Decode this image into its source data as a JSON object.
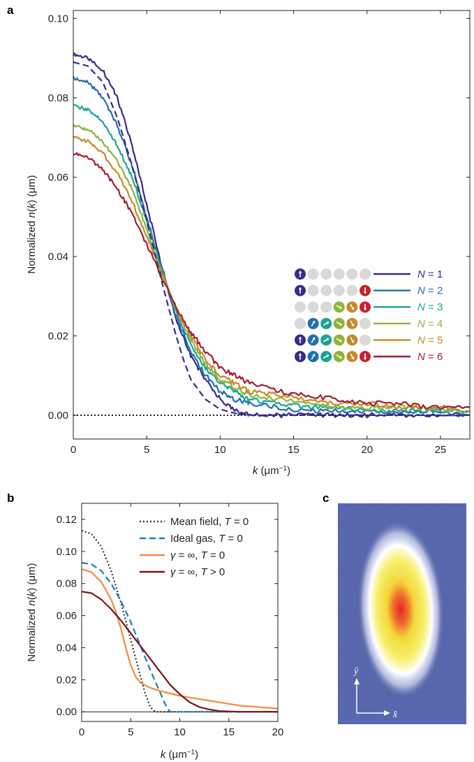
{
  "panels": {
    "a": "a",
    "b": "b",
    "c": "c"
  },
  "chart_data": [
    {
      "panel": "a",
      "type": "line",
      "xlabel": "k (μm⁻¹)",
      "ylabel": "Normalized n(k) (μm)",
      "xlim": [
        0,
        27
      ],
      "ylim": [
        -0.006,
        0.102
      ],
      "xticks": [
        0,
        5,
        10,
        15,
        20,
        25
      ],
      "yticks": [
        0.0,
        0.02,
        0.04,
        0.06,
        0.08,
        0.1
      ],
      "legend_position": "center-right",
      "reference_line": {
        "y": 0.0,
        "style": "dotted",
        "color": "#231f20"
      },
      "series": [
        {
          "name": "N = 1",
          "color": "#3b2a86",
          "x": [
            0,
            1,
            2,
            3,
            4,
            5,
            6,
            7,
            8,
            9,
            10,
            11,
            12,
            14,
            16,
            18,
            20,
            22,
            24,
            27
          ],
          "y": [
            0.091,
            0.09,
            0.087,
            0.08,
            0.068,
            0.053,
            0.038,
            0.024,
            0.015,
            0.009,
            0.004,
            0.001,
            0.0,
            0.0,
            0.0,
            0.0,
            0.0,
            0.0,
            0.0,
            0.0
          ]
        },
        {
          "name": "N = 2",
          "color": "#1f6fb2",
          "x": [
            0,
            1,
            2,
            3,
            4,
            5,
            6,
            7,
            8,
            9,
            10,
            11,
            12,
            14,
            16,
            18,
            20,
            22,
            24,
            27
          ],
          "y": [
            0.085,
            0.084,
            0.08,
            0.073,
            0.063,
            0.05,
            0.037,
            0.025,
            0.016,
            0.01,
            0.006,
            0.004,
            0.003,
            0.002,
            0.001,
            0.001,
            0.001,
            0.001,
            0.001,
            0.0
          ]
        },
        {
          "name": "N = 3",
          "color": "#1aa393",
          "x": [
            0,
            1,
            2,
            3,
            4,
            5,
            6,
            7,
            8,
            9,
            10,
            11,
            12,
            14,
            16,
            18,
            20,
            22,
            24,
            27
          ],
          "y": [
            0.078,
            0.077,
            0.074,
            0.068,
            0.06,
            0.049,
            0.037,
            0.026,
            0.018,
            0.012,
            0.008,
            0.006,
            0.004,
            0.003,
            0.002,
            0.002,
            0.001,
            0.001,
            0.001,
            0.001
          ]
        },
        {
          "name": "N = 4",
          "color": "#8fb43a",
          "x": [
            0,
            1,
            2,
            3,
            4,
            5,
            6,
            7,
            8,
            9,
            10,
            11,
            12,
            14,
            16,
            18,
            20,
            22,
            24,
            27
          ],
          "y": [
            0.073,
            0.072,
            0.069,
            0.064,
            0.057,
            0.047,
            0.036,
            0.027,
            0.019,
            0.013,
            0.009,
            0.007,
            0.005,
            0.004,
            0.003,
            0.002,
            0.002,
            0.002,
            0.002,
            0.001
          ]
        },
        {
          "name": "N = 5",
          "color": "#c48a2a",
          "x": [
            0,
            1,
            2,
            3,
            4,
            5,
            6,
            7,
            8,
            9,
            10,
            11,
            12,
            14,
            16,
            18,
            20,
            22,
            24,
            27
          ],
          "y": [
            0.07,
            0.069,
            0.066,
            0.061,
            0.054,
            0.045,
            0.036,
            0.027,
            0.02,
            0.014,
            0.01,
            0.008,
            0.006,
            0.005,
            0.004,
            0.003,
            0.003,
            0.002,
            0.002,
            0.002
          ]
        },
        {
          "name": "N = 6",
          "color": "#a41e34",
          "x": [
            0,
            1,
            2,
            3,
            4,
            5,
            6,
            7,
            8,
            9,
            10,
            11,
            12,
            14,
            16,
            18,
            20,
            22,
            24,
            27
          ],
          "y": [
            0.066,
            0.065,
            0.062,
            0.057,
            0.051,
            0.043,
            0.035,
            0.027,
            0.021,
            0.016,
            0.012,
            0.01,
            0.008,
            0.006,
            0.005,
            0.004,
            0.003,
            0.003,
            0.002,
            0.002
          ]
        },
        {
          "name": "",
          "color": "#3b2a86",
          "dashed": true,
          "x": [
            0,
            1,
            2,
            3,
            4,
            5,
            6,
            6.5,
            7,
            7.5,
            8,
            9,
            10,
            11,
            12,
            14,
            16,
            20,
            24,
            27
          ],
          "y": [
            0.089,
            0.088,
            0.084,
            0.075,
            0.063,
            0.049,
            0.034,
            0.027,
            0.02,
            0.014,
            0.009,
            0.004,
            0.0015,
            0.0005,
            0.0,
            0.0,
            0.0,
            0.0,
            0.0,
            0.0
          ]
        }
      ],
      "legend": [
        {
          "label": "N = 1",
          "color": "#3b2a86",
          "spins": [
            "up",
            "g",
            "g",
            "g",
            "g",
            "g"
          ]
        },
        {
          "label": "N = 2",
          "color": "#1f6fb2",
          "spins": [
            "up",
            "g",
            "g",
            "g",
            "g",
            "down"
          ]
        },
        {
          "label": "N = 3",
          "color": "#1aa393",
          "spins": [
            "g",
            "g",
            "g",
            "s4",
            "s5",
            "down"
          ]
        },
        {
          "label": "N = 4",
          "color": "#8fb43a",
          "spins": [
            "g",
            "s2",
            "s3",
            "s4",
            "s5",
            "g"
          ]
        },
        {
          "label": "N = 5",
          "color": "#c48a2a",
          "spins": [
            "up",
            "s2",
            "s3",
            "s4",
            "s5",
            "g"
          ]
        },
        {
          "label": "N = 6",
          "color": "#a41e34",
          "spins": [
            "up",
            "s2",
            "s3",
            "s4",
            "s5",
            "down"
          ]
        }
      ]
    },
    {
      "panel": "b",
      "type": "line",
      "xlabel": "k (μm⁻¹)",
      "ylabel": "Normalized n(k) (μm)",
      "xlim": [
        0,
        20
      ],
      "ylim": [
        -0.006,
        0.13
      ],
      "xticks": [
        0,
        5,
        10,
        15,
        20
      ],
      "yticks": [
        0.0,
        0.02,
        0.04,
        0.06,
        0.08,
        0.1,
        0.12
      ],
      "legend_position": "top-right",
      "reference_line": {
        "y": 0.0,
        "style": "solid",
        "color": "#231f20"
      },
      "series": [
        {
          "name": "Mean field, T = 0",
          "color": "#333333",
          "style": "dotted",
          "x": [
            0,
            1,
            2,
            3,
            4,
            5,
            6,
            6.5,
            7,
            7.5,
            8,
            10,
            15,
            20
          ],
          "y": [
            0.113,
            0.111,
            0.103,
            0.088,
            0.068,
            0.045,
            0.022,
            0.011,
            0.003,
            0.0,
            0.0,
            0.0,
            0.0,
            0.0
          ]
        },
        {
          "name": "Ideal gas, T = 0",
          "color": "#1a7fb0",
          "style": "dashed",
          "x": [
            0,
            1,
            2,
            3,
            4,
            5,
            6,
            7,
            8,
            8.5,
            9,
            10,
            15,
            20
          ],
          "y": [
            0.093,
            0.092,
            0.088,
            0.08,
            0.069,
            0.056,
            0.041,
            0.026,
            0.012,
            0.005,
            0.0,
            0.0,
            0.0,
            0.0
          ]
        },
        {
          "name": "γ = ∞, T = 0",
          "color": "#f58a3c",
          "style": "solid",
          "x": [
            0,
            1,
            2,
            3,
            3.5,
            4,
            4.5,
            5,
            5.5,
            6,
            7,
            8,
            10,
            12,
            14,
            16,
            18,
            20
          ],
          "y": [
            0.089,
            0.087,
            0.081,
            0.07,
            0.062,
            0.052,
            0.04,
            0.029,
            0.022,
            0.018,
            0.015,
            0.013,
            0.01,
            0.008,
            0.006,
            0.004,
            0.003,
            0.002
          ]
        },
        {
          "name": "γ = ∞, T > 0",
          "color": "#7a1416",
          "style": "solid",
          "x": [
            0,
            1,
            2,
            3,
            4,
            5,
            6,
            7,
            8,
            9,
            10,
            11,
            12,
            13,
            14,
            16,
            18,
            20
          ],
          "y": [
            0.075,
            0.074,
            0.07,
            0.064,
            0.057,
            0.049,
            0.041,
            0.033,
            0.025,
            0.017,
            0.011,
            0.006,
            0.003,
            0.0015,
            0.0005,
            0.0,
            0.0,
            0.0
          ]
        }
      ]
    }
  ],
  "image_c": {
    "x_axis_label": "x̂",
    "y_axis_label": "ŷ",
    "colors": {
      "background": "#4f5fa9",
      "halo": "#ffffff",
      "core": "#f3e94a",
      "center": "#e3262c"
    }
  }
}
